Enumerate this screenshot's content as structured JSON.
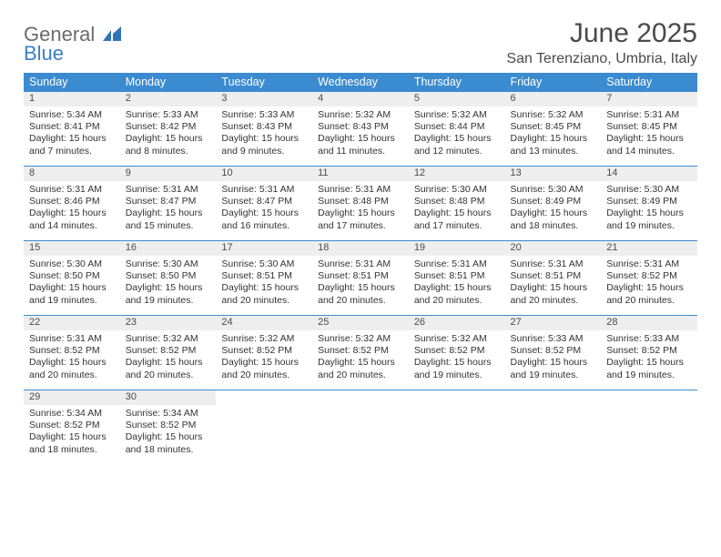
{
  "logo": {
    "line1": "General",
    "line2": "Blue",
    "icon_color": "#2f74b5"
  },
  "header": {
    "title": "June 2025",
    "location": "San Terenziano, Umbria, Italy"
  },
  "colors": {
    "header_bg": "#3b8bd0",
    "header_text": "#ffffff",
    "daynum_bg": "#eeeeee",
    "row_border": "#3b8bd0",
    "text": "#333333",
    "title_text": "#4a4a4a"
  },
  "weekdays": [
    "Sunday",
    "Monday",
    "Tuesday",
    "Wednesday",
    "Thursday",
    "Friday",
    "Saturday"
  ],
  "weeks": [
    [
      {
        "n": "1",
        "sr": "Sunrise: 5:34 AM",
        "ss": "Sunset: 8:41 PM",
        "d1": "Daylight: 15 hours",
        "d2": "and 7 minutes."
      },
      {
        "n": "2",
        "sr": "Sunrise: 5:33 AM",
        "ss": "Sunset: 8:42 PM",
        "d1": "Daylight: 15 hours",
        "d2": "and 8 minutes."
      },
      {
        "n": "3",
        "sr": "Sunrise: 5:33 AM",
        "ss": "Sunset: 8:43 PM",
        "d1": "Daylight: 15 hours",
        "d2": "and 9 minutes."
      },
      {
        "n": "4",
        "sr": "Sunrise: 5:32 AM",
        "ss": "Sunset: 8:43 PM",
        "d1": "Daylight: 15 hours",
        "d2": "and 11 minutes."
      },
      {
        "n": "5",
        "sr": "Sunrise: 5:32 AM",
        "ss": "Sunset: 8:44 PM",
        "d1": "Daylight: 15 hours",
        "d2": "and 12 minutes."
      },
      {
        "n": "6",
        "sr": "Sunrise: 5:32 AM",
        "ss": "Sunset: 8:45 PM",
        "d1": "Daylight: 15 hours",
        "d2": "and 13 minutes."
      },
      {
        "n": "7",
        "sr": "Sunrise: 5:31 AM",
        "ss": "Sunset: 8:45 PM",
        "d1": "Daylight: 15 hours",
        "d2": "and 14 minutes."
      }
    ],
    [
      {
        "n": "8",
        "sr": "Sunrise: 5:31 AM",
        "ss": "Sunset: 8:46 PM",
        "d1": "Daylight: 15 hours",
        "d2": "and 14 minutes."
      },
      {
        "n": "9",
        "sr": "Sunrise: 5:31 AM",
        "ss": "Sunset: 8:47 PM",
        "d1": "Daylight: 15 hours",
        "d2": "and 15 minutes."
      },
      {
        "n": "10",
        "sr": "Sunrise: 5:31 AM",
        "ss": "Sunset: 8:47 PM",
        "d1": "Daylight: 15 hours",
        "d2": "and 16 minutes."
      },
      {
        "n": "11",
        "sr": "Sunrise: 5:31 AM",
        "ss": "Sunset: 8:48 PM",
        "d1": "Daylight: 15 hours",
        "d2": "and 17 minutes."
      },
      {
        "n": "12",
        "sr": "Sunrise: 5:30 AM",
        "ss": "Sunset: 8:48 PM",
        "d1": "Daylight: 15 hours",
        "d2": "and 17 minutes."
      },
      {
        "n": "13",
        "sr": "Sunrise: 5:30 AM",
        "ss": "Sunset: 8:49 PM",
        "d1": "Daylight: 15 hours",
        "d2": "and 18 minutes."
      },
      {
        "n": "14",
        "sr": "Sunrise: 5:30 AM",
        "ss": "Sunset: 8:49 PM",
        "d1": "Daylight: 15 hours",
        "d2": "and 19 minutes."
      }
    ],
    [
      {
        "n": "15",
        "sr": "Sunrise: 5:30 AM",
        "ss": "Sunset: 8:50 PM",
        "d1": "Daylight: 15 hours",
        "d2": "and 19 minutes."
      },
      {
        "n": "16",
        "sr": "Sunrise: 5:30 AM",
        "ss": "Sunset: 8:50 PM",
        "d1": "Daylight: 15 hours",
        "d2": "and 19 minutes."
      },
      {
        "n": "17",
        "sr": "Sunrise: 5:30 AM",
        "ss": "Sunset: 8:51 PM",
        "d1": "Daylight: 15 hours",
        "d2": "and 20 minutes."
      },
      {
        "n": "18",
        "sr": "Sunrise: 5:31 AM",
        "ss": "Sunset: 8:51 PM",
        "d1": "Daylight: 15 hours",
        "d2": "and 20 minutes."
      },
      {
        "n": "19",
        "sr": "Sunrise: 5:31 AM",
        "ss": "Sunset: 8:51 PM",
        "d1": "Daylight: 15 hours",
        "d2": "and 20 minutes."
      },
      {
        "n": "20",
        "sr": "Sunrise: 5:31 AM",
        "ss": "Sunset: 8:51 PM",
        "d1": "Daylight: 15 hours",
        "d2": "and 20 minutes."
      },
      {
        "n": "21",
        "sr": "Sunrise: 5:31 AM",
        "ss": "Sunset: 8:52 PM",
        "d1": "Daylight: 15 hours",
        "d2": "and 20 minutes."
      }
    ],
    [
      {
        "n": "22",
        "sr": "Sunrise: 5:31 AM",
        "ss": "Sunset: 8:52 PM",
        "d1": "Daylight: 15 hours",
        "d2": "and 20 minutes."
      },
      {
        "n": "23",
        "sr": "Sunrise: 5:32 AM",
        "ss": "Sunset: 8:52 PM",
        "d1": "Daylight: 15 hours",
        "d2": "and 20 minutes."
      },
      {
        "n": "24",
        "sr": "Sunrise: 5:32 AM",
        "ss": "Sunset: 8:52 PM",
        "d1": "Daylight: 15 hours",
        "d2": "and 20 minutes."
      },
      {
        "n": "25",
        "sr": "Sunrise: 5:32 AM",
        "ss": "Sunset: 8:52 PM",
        "d1": "Daylight: 15 hours",
        "d2": "and 20 minutes."
      },
      {
        "n": "26",
        "sr": "Sunrise: 5:32 AM",
        "ss": "Sunset: 8:52 PM",
        "d1": "Daylight: 15 hours",
        "d2": "and 19 minutes."
      },
      {
        "n": "27",
        "sr": "Sunrise: 5:33 AM",
        "ss": "Sunset: 8:52 PM",
        "d1": "Daylight: 15 hours",
        "d2": "and 19 minutes."
      },
      {
        "n": "28",
        "sr": "Sunrise: 5:33 AM",
        "ss": "Sunset: 8:52 PM",
        "d1": "Daylight: 15 hours",
        "d2": "and 19 minutes."
      }
    ],
    [
      {
        "n": "29",
        "sr": "Sunrise: 5:34 AM",
        "ss": "Sunset: 8:52 PM",
        "d1": "Daylight: 15 hours",
        "d2": "and 18 minutes."
      },
      {
        "n": "30",
        "sr": "Sunrise: 5:34 AM",
        "ss": "Sunset: 8:52 PM",
        "d1": "Daylight: 15 hours",
        "d2": "and 18 minutes."
      },
      null,
      null,
      null,
      null,
      null
    ]
  ]
}
